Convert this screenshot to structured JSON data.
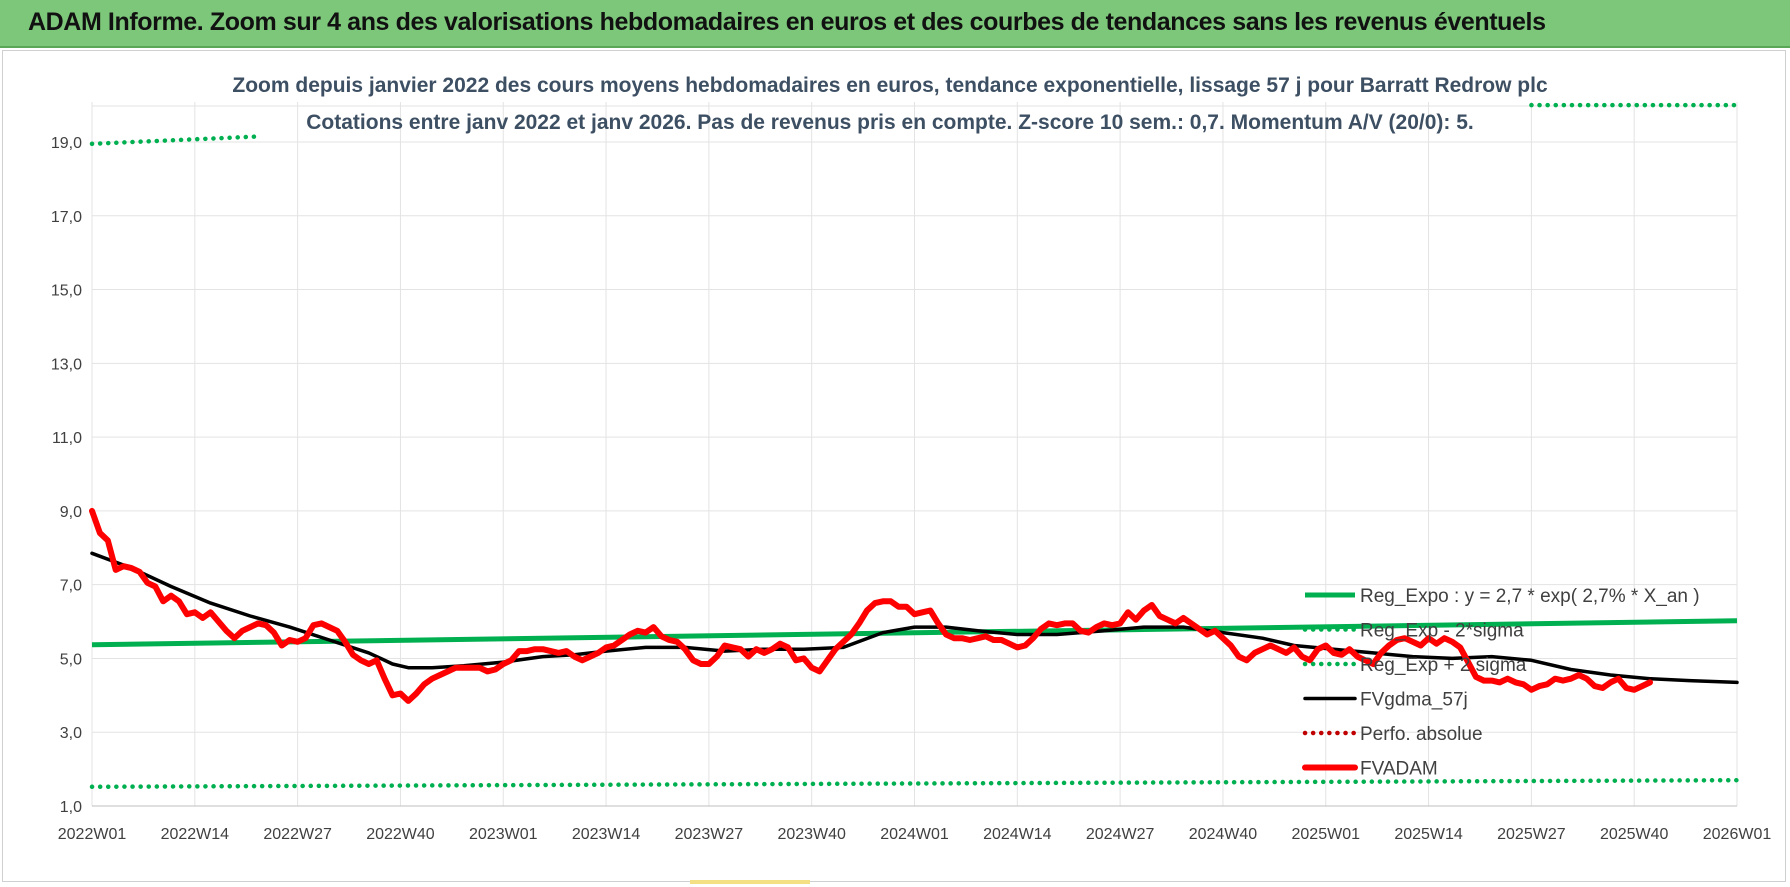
{
  "header": {
    "banner_title": "ADAM Informe. Zoom sur 4 ans des valorisations hebdomadaires en euros et des courbes de tendances sans les revenus éventuels"
  },
  "colors": {
    "banner_bg": "#7dc77a",
    "reg_expo": "#00b050",
    "fvgdma": "#000000",
    "fvadam": "#ff0000",
    "perfo": "#c00000",
    "title": "#3d4f63"
  },
  "chart_data": {
    "type": "line",
    "title": "Zoom depuis janvier 2022 des cours moyens hebdomadaires en euros, tendance exponentielle, lissage 57 j pour Barratt Redrow plc",
    "subtitle": "Cotations entre janv 2022 et janv 2026. Pas de revenus pris en compte. Z-score 10 sem.: 0,7. Momentum A/V (20/0): 5.",
    "xlabel": "",
    "ylabel": "",
    "ylim": [
      1.0,
      20.0
    ],
    "x_range_weeks": [
      0,
      209
    ],
    "x_ticks": [
      {
        "label": "2022W01",
        "week": 0
      },
      {
        "label": "2022W14",
        "week": 13
      },
      {
        "label": "2022W27",
        "week": 26
      },
      {
        "label": "2022W40",
        "week": 39
      },
      {
        "label": "2023W01",
        "week": 52
      },
      {
        "label": "2023W14",
        "week": 65
      },
      {
        "label": "2023W27",
        "week": 78
      },
      {
        "label": "2023W40",
        "week": 91
      },
      {
        "label": "2024W01",
        "week": 104
      },
      {
        "label": "2024W14",
        "week": 117
      },
      {
        "label": "2024W27",
        "week": 130
      },
      {
        "label": "2024W40",
        "week": 143
      },
      {
        "label": "2025W01",
        "week": 156
      },
      {
        "label": "2025W14",
        "week": 169
      },
      {
        "label": "2025W27",
        "week": 182
      },
      {
        "label": "2025W40",
        "week": 195
      },
      {
        "label": "2026W01",
        "week": 208
      }
    ],
    "y_ticks": [
      "1,0",
      "3,0",
      "5,0",
      "7,0",
      "9,0",
      "11,0",
      "13,0",
      "15,0",
      "17,0",
      "19,0"
    ],
    "y_tick_values": [
      1,
      3,
      5,
      7,
      9,
      11,
      13,
      15,
      17,
      19
    ],
    "grid": true,
    "legend_position": "right",
    "series": [
      {
        "name": "Reg_Expo : y = 2,7 * exp( 2,7% *  X_an )",
        "style": "solid",
        "color": "#00b050",
        "points": [
          [
            0,
            5.37
          ],
          [
            208,
            6.02
          ]
        ]
      },
      {
        "name": "Reg_Exp - 2*sigma",
        "style": "dotted",
        "color": "#00b050",
        "points": [
          [
            0,
            1.52
          ],
          [
            208,
            1.7
          ]
        ]
      },
      {
        "name": "Reg_Exp + 2 sigma",
        "style": "dotted",
        "color": "#00b050",
        "points": [
          [
            0,
            18.95
          ],
          [
            21,
            19.15
          ],
          [
            21,
            null
          ],
          [
            182,
            20.0
          ],
          [
            208,
            20.0
          ]
        ]
      },
      {
        "name": "FVgdma_57j",
        "style": "solid",
        "color": "#000000",
        "points": [
          [
            0,
            7.85
          ],
          [
            5,
            7.45
          ],
          [
            10,
            6.95
          ],
          [
            15,
            6.5
          ],
          [
            20,
            6.15
          ],
          [
            25,
            5.85
          ],
          [
            30,
            5.5
          ],
          [
            35,
            5.15
          ],
          [
            38,
            4.85
          ],
          [
            40,
            4.75
          ],
          [
            43,
            4.75
          ],
          [
            47,
            4.8
          ],
          [
            52,
            4.9
          ],
          [
            57,
            5.05
          ],
          [
            61,
            5.1
          ],
          [
            65,
            5.2
          ],
          [
            70,
            5.3
          ],
          [
            75,
            5.3
          ],
          [
            80,
            5.2
          ],
          [
            85,
            5.25
          ],
          [
            90,
            5.25
          ],
          [
            95,
            5.3
          ],
          [
            100,
            5.7
          ],
          [
            104,
            5.85
          ],
          [
            108,
            5.85
          ],
          [
            112,
            5.75
          ],
          [
            117,
            5.65
          ],
          [
            122,
            5.65
          ],
          [
            128,
            5.75
          ],
          [
            133,
            5.85
          ],
          [
            138,
            5.85
          ],
          [
            143,
            5.7
          ],
          [
            148,
            5.55
          ],
          [
            152,
            5.35
          ],
          [
            157,
            5.25
          ],
          [
            162,
            5.15
          ],
          [
            167,
            5.05
          ],
          [
            172,
            5.0
          ],
          [
            177,
            5.05
          ],
          [
            182,
            4.95
          ],
          [
            187,
            4.7
          ],
          [
            192,
            4.55
          ],
          [
            197,
            4.45
          ],
          [
            202,
            4.4
          ],
          [
            208,
            4.35
          ]
        ]
      },
      {
        "name": "Perfo. absolue",
        "style": "dotted",
        "color": "#c00000",
        "points": []
      },
      {
        "name": "FVADAM",
        "style": "solid",
        "color": "#ff0000",
        "points": [
          [
            0,
            9.0
          ],
          [
            1,
            8.4
          ],
          [
            2,
            8.2
          ],
          [
            3,
            7.4
          ],
          [
            4,
            7.5
          ],
          [
            5,
            7.45
          ],
          [
            6,
            7.35
          ],
          [
            7,
            7.05
          ],
          [
            8,
            6.95
          ],
          [
            9,
            6.55
          ],
          [
            10,
            6.7
          ],
          [
            11,
            6.55
          ],
          [
            12,
            6.2
          ],
          [
            13,
            6.25
          ],
          [
            14,
            6.1
          ],
          [
            15,
            6.25
          ],
          [
            16,
            6.0
          ],
          [
            17,
            5.75
          ],
          [
            18,
            5.55
          ],
          [
            19,
            5.75
          ],
          [
            20,
            5.85
          ],
          [
            21,
            5.95
          ],
          [
            22,
            5.9
          ],
          [
            23,
            5.7
          ],
          [
            24,
            5.35
          ],
          [
            25,
            5.5
          ],
          [
            26,
            5.45
          ],
          [
            27,
            5.55
          ],
          [
            28,
            5.9
          ],
          [
            29,
            5.95
          ],
          [
            30,
            5.85
          ],
          [
            31,
            5.75
          ],
          [
            32,
            5.45
          ],
          [
            33,
            5.1
          ],
          [
            34,
            4.95
          ],
          [
            35,
            4.85
          ],
          [
            36,
            4.95
          ],
          [
            37,
            4.45
          ],
          [
            38,
            4.0
          ],
          [
            39,
            4.05
          ],
          [
            40,
            3.85
          ],
          [
            41,
            4.05
          ],
          [
            42,
            4.3
          ],
          [
            43,
            4.45
          ],
          [
            44,
            4.55
          ],
          [
            45,
            4.65
          ],
          [
            46,
            4.75
          ],
          [
            47,
            4.75
          ],
          [
            48,
            4.75
          ],
          [
            49,
            4.75
          ],
          [
            50,
            4.65
          ],
          [
            51,
            4.7
          ],
          [
            52,
            4.85
          ],
          [
            53,
            4.95
          ],
          [
            54,
            5.2
          ],
          [
            55,
            5.2
          ],
          [
            56,
            5.25
          ],
          [
            57,
            5.25
          ],
          [
            58,
            5.2
          ],
          [
            59,
            5.15
          ],
          [
            60,
            5.2
          ],
          [
            61,
            5.05
          ],
          [
            62,
            4.95
          ],
          [
            63,
            5.05
          ],
          [
            64,
            5.15
          ],
          [
            65,
            5.3
          ],
          [
            66,
            5.35
          ],
          [
            67,
            5.5
          ],
          [
            68,
            5.65
          ],
          [
            69,
            5.75
          ],
          [
            70,
            5.7
          ],
          [
            71,
            5.85
          ],
          [
            72,
            5.6
          ],
          [
            73,
            5.5
          ],
          [
            74,
            5.45
          ],
          [
            75,
            5.25
          ],
          [
            76,
            4.95
          ],
          [
            77,
            4.85
          ],
          [
            78,
            4.85
          ],
          [
            79,
            5.05
          ],
          [
            80,
            5.35
          ],
          [
            81,
            5.3
          ],
          [
            82,
            5.25
          ],
          [
            83,
            5.05
          ],
          [
            84,
            5.25
          ],
          [
            85,
            5.15
          ],
          [
            86,
            5.25
          ],
          [
            87,
            5.4
          ],
          [
            88,
            5.3
          ],
          [
            89,
            4.95
          ],
          [
            90,
            5.0
          ],
          [
            91,
            4.75
          ],
          [
            92,
            4.65
          ],
          [
            93,
            4.95
          ],
          [
            94,
            5.25
          ],
          [
            95,
            5.45
          ],
          [
            96,
            5.65
          ],
          [
            97,
            5.95
          ],
          [
            98,
            6.3
          ],
          [
            99,
            6.5
          ],
          [
            100,
            6.55
          ],
          [
            101,
            6.55
          ],
          [
            102,
            6.4
          ],
          [
            103,
            6.4
          ],
          [
            104,
            6.2
          ],
          [
            105,
            6.25
          ],
          [
            106,
            6.3
          ],
          [
            107,
            5.95
          ],
          [
            108,
            5.65
          ],
          [
            109,
            5.55
          ],
          [
            110,
            5.55
          ],
          [
            111,
            5.5
          ],
          [
            112,
            5.55
          ],
          [
            113,
            5.6
          ],
          [
            114,
            5.5
          ],
          [
            115,
            5.5
          ],
          [
            116,
            5.4
          ],
          [
            117,
            5.3
          ],
          [
            118,
            5.35
          ],
          [
            119,
            5.55
          ],
          [
            120,
            5.8
          ],
          [
            121,
            5.95
          ],
          [
            122,
            5.9
          ],
          [
            123,
            5.95
          ],
          [
            124,
            5.95
          ],
          [
            125,
            5.75
          ],
          [
            126,
            5.7
          ],
          [
            127,
            5.85
          ],
          [
            128,
            5.95
          ],
          [
            129,
            5.9
          ],
          [
            130,
            5.95
          ],
          [
            131,
            6.25
          ],
          [
            132,
            6.05
          ],
          [
            133,
            6.3
          ],
          [
            134,
            6.45
          ],
          [
            135,
            6.15
          ],
          [
            136,
            6.05
          ],
          [
            137,
            5.95
          ],
          [
            138,
            6.1
          ],
          [
            139,
            5.95
          ],
          [
            140,
            5.8
          ],
          [
            141,
            5.65
          ],
          [
            142,
            5.75
          ],
          [
            143,
            5.55
          ],
          [
            144,
            5.35
          ],
          [
            145,
            5.05
          ],
          [
            146,
            4.95
          ],
          [
            147,
            5.15
          ],
          [
            148,
            5.25
          ],
          [
            149,
            5.35
          ],
          [
            150,
            5.25
          ],
          [
            151,
            5.15
          ],
          [
            152,
            5.3
          ],
          [
            153,
            5.05
          ],
          [
            154,
            4.95
          ],
          [
            155,
            5.25
          ],
          [
            156,
            5.35
          ],
          [
            157,
            5.15
          ],
          [
            158,
            5.1
          ],
          [
            159,
            5.25
          ],
          [
            160,
            5.05
          ],
          [
            161,
            4.95
          ],
          [
            162,
            4.85
          ],
          [
            163,
            5.15
          ],
          [
            164,
            5.35
          ],
          [
            165,
            5.5
          ],
          [
            166,
            5.55
          ],
          [
            167,
            5.45
          ],
          [
            168,
            5.35
          ],
          [
            169,
            5.55
          ],
          [
            170,
            5.4
          ],
          [
            171,
            5.55
          ],
          [
            172,
            5.45
          ],
          [
            173,
            5.3
          ],
          [
            174,
            4.9
          ],
          [
            175,
            4.5
          ],
          [
            176,
            4.4
          ],
          [
            177,
            4.4
          ],
          [
            178,
            4.35
          ],
          [
            179,
            4.45
          ],
          [
            180,
            4.35
          ],
          [
            181,
            4.3
          ],
          [
            182,
            4.15
          ],
          [
            183,
            4.25
          ],
          [
            184,
            4.3
          ],
          [
            185,
            4.45
          ],
          [
            186,
            4.4
          ],
          [
            187,
            4.45
          ],
          [
            188,
            4.55
          ],
          [
            189,
            4.45
          ],
          [
            190,
            4.25
          ],
          [
            191,
            4.2
          ],
          [
            192,
            4.35
          ],
          [
            193,
            4.45
          ],
          [
            194,
            4.2
          ],
          [
            195,
            4.15
          ],
          [
            196,
            4.25
          ],
          [
            197,
            4.35
          ]
        ]
      }
    ]
  }
}
